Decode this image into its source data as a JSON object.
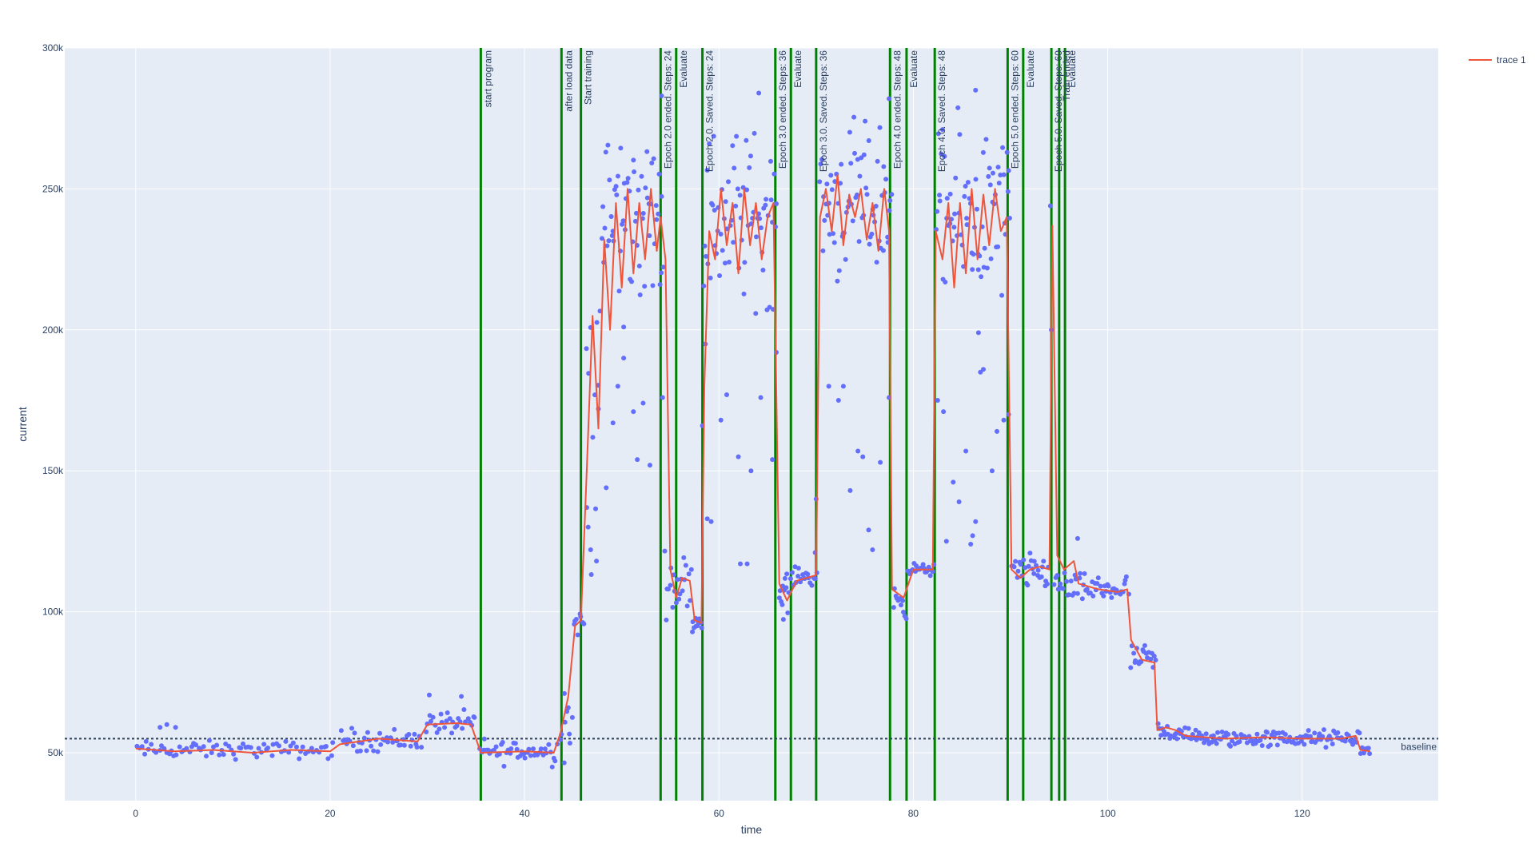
{
  "chart_data": {
    "type": "line",
    "xlabel": "time",
    "ylabel": "current",
    "xlim": [
      -7.3,
      134
    ],
    "ylim": [
      33000,
      300000
    ],
    "x_ticks": [
      0,
      20,
      40,
      60,
      80,
      100,
      120
    ],
    "x_tick_labels": [
      "0",
      "20",
      "40",
      "60",
      "80",
      "100",
      "120"
    ],
    "y_ticks": [
      50000,
      100000,
      150000,
      200000,
      250000,
      300000
    ],
    "y_tick_labels": [
      "50k",
      "100k",
      "150k",
      "200k",
      "250k",
      "300k"
    ],
    "grid": true,
    "legend_position": "top-right",
    "colors": {
      "plot_bg": "#e5ecf6",
      "grid": "#ffffff",
      "line": "#ef553b",
      "points": "#636efa",
      "events": "#008000",
      "baseline": "#2a3f5f",
      "text": "#2a3f5f"
    },
    "series": [
      {
        "name": "trace 1",
        "kind": "line",
        "points": [
          [
            0,
            51500
          ],
          [
            4,
            50500
          ],
          [
            8,
            51000
          ],
          [
            12,
            50000
          ],
          [
            16,
            51000
          ],
          [
            20,
            50500
          ],
          [
            21,
            53000
          ],
          [
            25,
            55000
          ],
          [
            29,
            54000
          ],
          [
            30,
            60000
          ],
          [
            33,
            60500
          ],
          [
            34.5,
            60000
          ],
          [
            35.5,
            50000
          ],
          [
            40,
            50500
          ],
          [
            43,
            50000
          ],
          [
            43.7,
            57000
          ],
          [
            44.5,
            70000
          ],
          [
            45.2,
            95000
          ],
          [
            45.8,
            97000
          ],
          [
            46.4,
            150000
          ],
          [
            47,
            205000
          ],
          [
            47.6,
            165000
          ],
          [
            48.2,
            232000
          ],
          [
            48.8,
            200000
          ],
          [
            49.4,
            245000
          ],
          [
            50,
            215000
          ],
          [
            50.6,
            250000
          ],
          [
            51.2,
            220000
          ],
          [
            51.8,
            245000
          ],
          [
            52.4,
            225000
          ],
          [
            53,
            250000
          ],
          [
            53.6,
            228000
          ],
          [
            54,
            240000
          ],
          [
            54.5,
            225000
          ],
          [
            55,
            115000
          ],
          [
            55.6,
            105000
          ],
          [
            56.2,
            112000
          ],
          [
            57,
            111000
          ],
          [
            57.5,
            97000
          ],
          [
            58.2,
            96000
          ],
          [
            58.5,
            180000
          ],
          [
            59,
            235000
          ],
          [
            59.6,
            225000
          ],
          [
            60.2,
            250000
          ],
          [
            60.8,
            230000
          ],
          [
            61.4,
            245000
          ],
          [
            62,
            220000
          ],
          [
            62.6,
            250000
          ],
          [
            63.2,
            230000
          ],
          [
            63.8,
            245000
          ],
          [
            64.4,
            225000
          ],
          [
            65,
            240000
          ],
          [
            65.6,
            245000
          ],
          [
            66.2,
            110000
          ],
          [
            67,
            104000
          ],
          [
            68,
            111000
          ],
          [
            69,
            112000
          ],
          [
            70,
            113000
          ],
          [
            70.4,
            240000
          ],
          [
            71,
            250000
          ],
          [
            71.6,
            235000
          ],
          [
            72.2,
            255000
          ],
          [
            72.8,
            230000
          ],
          [
            73.4,
            248000
          ],
          [
            74,
            240000
          ],
          [
            74.6,
            250000
          ],
          [
            75.2,
            232000
          ],
          [
            75.8,
            245000
          ],
          [
            76.4,
            228000
          ],
          [
            77,
            250000
          ],
          [
            77.5,
            235000
          ],
          [
            77.8,
            108000
          ],
          [
            79,
            105000
          ],
          [
            80,
            115000
          ],
          [
            82,
            115000
          ],
          [
            82.3,
            235000
          ],
          [
            83,
            225000
          ],
          [
            83.6,
            245000
          ],
          [
            84.2,
            215000
          ],
          [
            84.8,
            245000
          ],
          [
            85.4,
            220000
          ],
          [
            86,
            250000
          ],
          [
            86.6,
            225000
          ],
          [
            87.2,
            248000
          ],
          [
            87.8,
            230000
          ],
          [
            88.4,
            250000
          ],
          [
            89,
            235000
          ],
          [
            89.6,
            240000
          ],
          [
            90.1,
            115000
          ],
          [
            91,
            112000
          ],
          [
            92,
            115000
          ],
          [
            93,
            116000
          ],
          [
            94,
            115000
          ],
          [
            94.3,
            237000
          ],
          [
            94.8,
            120000
          ],
          [
            95.5,
            115000
          ],
          [
            96.5,
            118000
          ],
          [
            97,
            110000
          ],
          [
            99,
            108000
          ],
          [
            101,
            107000
          ],
          [
            102,
            108000
          ],
          [
            102.4,
            90000
          ],
          [
            103.5,
            83000
          ],
          [
            104.8,
            82000
          ],
          [
            105.1,
            58000
          ],
          [
            106,
            59000
          ],
          [
            107,
            58000
          ],
          [
            108,
            56000
          ],
          [
            112,
            55000
          ],
          [
            116,
            55500
          ],
          [
            120,
            55000
          ],
          [
            124,
            55000
          ],
          [
            125.5,
            56000
          ],
          [
            126,
            51000
          ],
          [
            127,
            50500
          ]
        ]
      },
      {
        "name": "",
        "kind": "markers",
        "segments": [
          [
            0,
            20.5,
            51000,
            1500,
            80
          ],
          [
            21,
            29.5,
            54500,
            2000,
            45
          ],
          [
            29.8,
            35,
            60500,
            2000,
            28
          ],
          [
            35.3,
            43.5,
            50500,
            2200,
            45
          ],
          [
            43.6,
            45,
            60000,
            6000,
            8
          ],
          [
            45,
            46.2,
            96000,
            3000,
            8
          ],
          [
            46.3,
            48,
            175000,
            30000,
            12
          ],
          [
            48,
            54.3,
            240000,
            15000,
            60
          ],
          [
            54.4,
            57.2,
            110000,
            5000,
            22
          ],
          [
            57.2,
            58.3,
            96500,
            1500,
            10
          ],
          [
            58.4,
            66,
            240000,
            15000,
            70
          ],
          [
            66.2,
            67.2,
            106000,
            4000,
            12
          ],
          [
            67.3,
            70.2,
            112500,
            1500,
            20
          ],
          [
            70.3,
            77.8,
            245000,
            13000,
            70
          ],
          [
            77.9,
            79.3,
            104000,
            3000,
            12
          ],
          [
            79.4,
            82.2,
            115000,
            1000,
            22
          ],
          [
            82.3,
            90,
            240000,
            15000,
            72
          ],
          [
            90.1,
            94,
            114000,
            3000,
            30
          ],
          [
            94.4,
            95.6,
            110000,
            3000,
            8
          ],
          [
            95.7,
            102.2,
            108000,
            2500,
            45
          ],
          [
            102.3,
            105,
            83000,
            2500,
            20
          ],
          [
            105.1,
            108.5,
            57500,
            1800,
            22
          ],
          [
            108.5,
            126,
            55000,
            1500,
            120
          ],
          [
            126,
            127,
            51000,
            800,
            8
          ]
        ],
        "outliers": [
          [
            2.5,
            59000
          ],
          [
            3.2,
            60000
          ],
          [
            4.1,
            59000
          ],
          [
            33.5,
            70000
          ],
          [
            30.2,
            70500
          ],
          [
            44.1,
            71000
          ],
          [
            44.5,
            66000
          ],
          [
            46.4,
            137000
          ],
          [
            46.8,
            122000
          ],
          [
            47.4,
            118000
          ],
          [
            47.6,
            172000
          ],
          [
            48.4,
            144000
          ],
          [
            49.1,
            167000
          ],
          [
            49.6,
            180000
          ],
          [
            50.2,
            201000
          ],
          [
            50.2,
            190000
          ],
          [
            51.2,
            171000
          ],
          [
            51.6,
            154000
          ],
          [
            52.2,
            174000
          ],
          [
            52.9,
            152000
          ],
          [
            54.2,
            176000
          ],
          [
            54.1,
            283000
          ],
          [
            58.3,
            166000
          ],
          [
            58.6,
            195000
          ],
          [
            58.8,
            133000
          ],
          [
            59.2,
            132000
          ],
          [
            60.2,
            168000
          ],
          [
            60.8,
            177000
          ],
          [
            62,
            155000
          ],
          [
            62.2,
            117000
          ],
          [
            62.9,
            117000
          ],
          [
            63.3,
            150000
          ],
          [
            64.3,
            176000
          ],
          [
            64.1,
            284000
          ],
          [
            65.5,
            154000
          ],
          [
            65.9,
            192000
          ],
          [
            69.9,
            121000
          ],
          [
            70,
            140000
          ],
          [
            71.3,
            180000
          ],
          [
            72.3,
            175000
          ],
          [
            72.8,
            180000
          ],
          [
            73.5,
            143000
          ],
          [
            74.3,
            157000
          ],
          [
            74.8,
            155000
          ],
          [
            75.4,
            129000
          ],
          [
            75.8,
            122000
          ],
          [
            76.6,
            153000
          ],
          [
            77.5,
            176000
          ],
          [
            77.5,
            282000
          ],
          [
            82.5,
            175000
          ],
          [
            83.1,
            171000
          ],
          [
            83.4,
            125000
          ],
          [
            84.1,
            146000
          ],
          [
            84.7,
            139000
          ],
          [
            85.4,
            157000
          ],
          [
            85.9,
            124000
          ],
          [
            86.1,
            127000
          ],
          [
            86.4,
            132000
          ],
          [
            86.7,
            199000
          ],
          [
            86.9,
            185000
          ],
          [
            86.4,
            285000
          ],
          [
            87.2,
            186000
          ],
          [
            88.1,
            150000
          ],
          [
            88.6,
            164000
          ],
          [
            89.3,
            168000
          ],
          [
            89.8,
            170000
          ],
          [
            94.1,
            244000
          ],
          [
            94.2,
            200000
          ],
          [
            96.9,
            126000
          ]
        ]
      },
      {
        "name": "",
        "kind": "hline",
        "value": 55000,
        "label": "baseline"
      }
    ],
    "annotations": [
      {
        "x": 35.5,
        "text": "start program"
      },
      {
        "x": 43.8,
        "text": "after load data"
      },
      {
        "x": 45.8,
        "text": "Start training"
      },
      {
        "x": 54.0,
        "text": "Epoch 2.0 ended. Steps: 24"
      },
      {
        "x": 55.6,
        "text": "Evaluate"
      },
      {
        "x": 58.3,
        "text": "Epoch 2.0. Saved. Steps: 24"
      },
      {
        "x": 65.8,
        "text": "Epoch 3.0 ended. Steps: 36"
      },
      {
        "x": 67.4,
        "text": "Evaluate"
      },
      {
        "x": 70.0,
        "text": "Epoch 3.0. Saved. Steps: 36"
      },
      {
        "x": 77.6,
        "text": "Epoch 4.0 ended. Steps: 48"
      },
      {
        "x": 79.3,
        "text": "Evaluate"
      },
      {
        "x": 82.2,
        "text": "Epoch 4.0. Saved. Steps: 48"
      },
      {
        "x": 89.7,
        "text": "Epoch 5.0 ended. Steps: 60"
      },
      {
        "x": 91.3,
        "text": "Evaluate"
      },
      {
        "x": 94.2,
        "text": "Epoch 5.0. Saved. Steps: 60"
      },
      {
        "x": 95.0,
        "text": "Train ended"
      },
      {
        "x": 95.6,
        "text": "Evaluate"
      }
    ],
    "legend": [
      {
        "name": "trace 1"
      }
    ]
  }
}
